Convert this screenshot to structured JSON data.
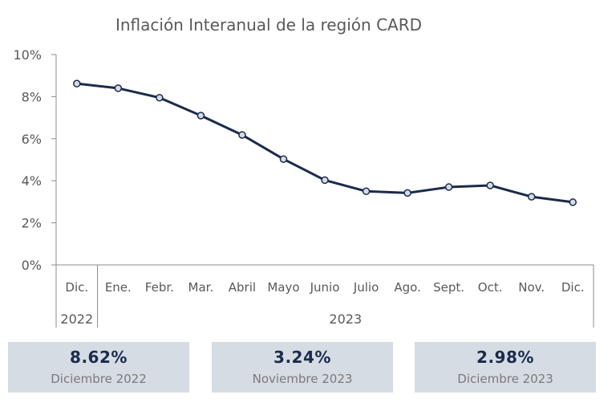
{
  "chart_data": {
    "type": "line",
    "title": "Inflación Interanual de la región CARD",
    "categories": [
      "Dic.",
      "Ene.",
      "Febr.",
      "Mar.",
      "Abril",
      "Mayo",
      "Junio",
      "Julio",
      "Ago.",
      "Sept.",
      "Oct.",
      "Nov.",
      "Dic."
    ],
    "year_groups": [
      {
        "label": "2022",
        "count": 1
      },
      {
        "label": "2023",
        "count": 12
      }
    ],
    "series": [
      {
        "values": [
          8.62,
          8.4,
          7.95,
          7.1,
          6.18,
          5.03,
          4.03,
          3.5,
          3.42,
          3.7,
          3.78,
          3.24,
          2.98
        ]
      }
    ],
    "ylim": [
      0,
      10
    ],
    "yticks": [
      0,
      2,
      4,
      6,
      8,
      10
    ],
    "ytick_suffix": "%",
    "grid": false,
    "line_color": "#1b2b4b",
    "marker_fill": "#d6dce4"
  },
  "cards": [
    {
      "value": "8.62%",
      "label": "Diciembre 2022"
    },
    {
      "value": "3.24%",
      "label": "Noviembre 2023"
    },
    {
      "value": "2.98%",
      "label": "Diciembre 2023"
    }
  ],
  "colors": {
    "card_background": "#d6dce4",
    "card_value": "#1b2b4b",
    "card_label": "#7a7a7a"
  }
}
